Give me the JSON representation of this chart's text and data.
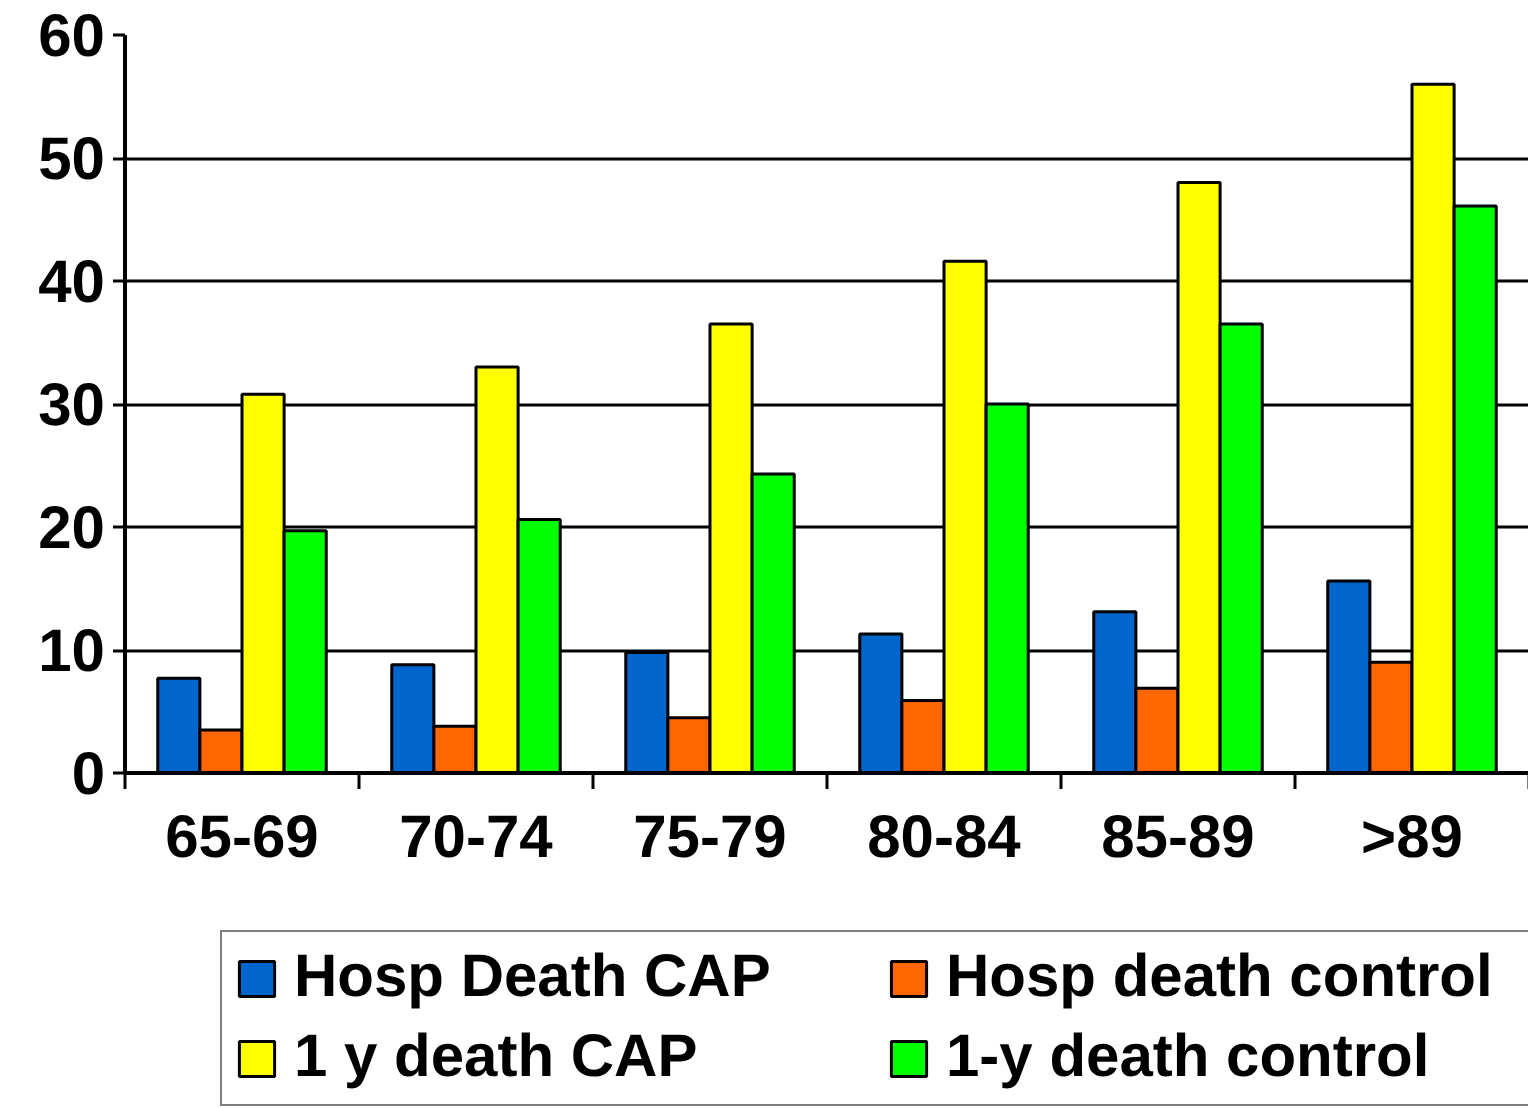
{
  "chart_data": {
    "type": "bar",
    "categories": [
      "65-69",
      "70-74",
      "75-79",
      "80-84",
      "85-89",
      ">89"
    ],
    "series": [
      {
        "name": "Hosp Death CAP",
        "color": "#0066cc",
        "values": [
          7.7,
          8.8,
          9.8,
          11.3,
          13.1,
          15.6
        ]
      },
      {
        "name": "Hosp death control",
        "color": "#ff6600",
        "values": [
          3.5,
          3.8,
          4.5,
          5.9,
          6.9,
          9.0
        ]
      },
      {
        "name": "1 y death CAP",
        "color": "#ffff00",
        "values": [
          30.8,
          33.0,
          36.5,
          41.6,
          48.0,
          56.0
        ]
      },
      {
        "name": "1-y death control",
        "color": "#00ff00",
        "values": [
          19.7,
          20.6,
          24.3,
          30.0,
          36.5,
          46.1
        ]
      }
    ],
    "ylim": [
      0,
      60
    ],
    "yticks": [
      0,
      10,
      20,
      30,
      40,
      50,
      60
    ],
    "grid": "y",
    "legend": "bottom"
  }
}
